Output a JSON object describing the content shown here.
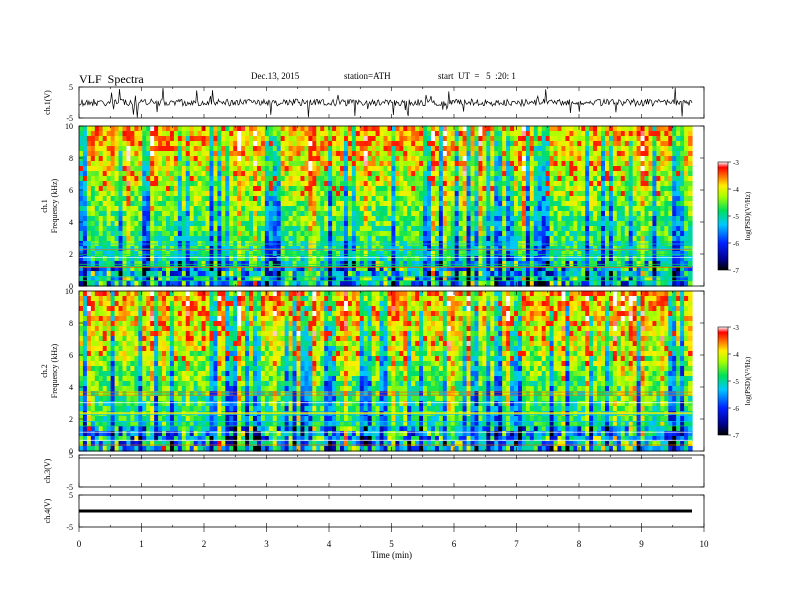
{
  "header": {
    "title": "VLF  Spectra",
    "date": "Dec.13, 2015",
    "station": "station=ATH",
    "start": "start  UT  =   5  :20: 1"
  },
  "chart_data": [
    {
      "type": "line",
      "name": "ch1-waveform",
      "ylabel": "ch.1(V)",
      "ylim": [
        -5,
        5
      ],
      "yticks": [
        "5",
        "-5"
      ],
      "xlim": [
        0,
        10
      ],
      "x_end": 9.8,
      "style": "noisy waveform around 0 V with frequent spikes"
    },
    {
      "type": "heatmap",
      "name": "ch1-spectrogram",
      "ylabel": "ch.1\nFrequency  (kHz)",
      "ylim": [
        0,
        10
      ],
      "yticks": [
        "0",
        "2",
        "4",
        "6",
        "8",
        "10"
      ],
      "xlim": [
        0,
        10
      ],
      "x_end": 9.8,
      "colorbar": {
        "label": "log(PSD)(V²/Hz)",
        "range": [
          -7,
          -3
        ],
        "ticks": [
          "-3",
          "-4",
          "-5",
          "-6",
          "-7"
        ]
      }
    },
    {
      "type": "heatmap",
      "name": "ch2-spectrogram",
      "ylabel": "ch.2\nFrequency  (kHz)",
      "ylim": [
        0,
        10
      ],
      "yticks": [
        "0",
        "2",
        "4",
        "6",
        "8",
        "10"
      ],
      "xlim": [
        0,
        10
      ],
      "x_end": 9.8,
      "colorbar": {
        "label": "log(PSD)(V²/Hz)",
        "range": [
          -7,
          -3
        ],
        "ticks": [
          "-3",
          "-4",
          "-5",
          "-6",
          "-7"
        ]
      }
    },
    {
      "type": "line",
      "name": "ch3-waveform",
      "ylabel": "ch.3(V)",
      "ylim": [
        -5,
        5
      ],
      "yticks": [
        "5",
        "-5"
      ],
      "xlim": [
        0,
        10
      ],
      "x_end": 9.8,
      "style": "flat trace near upper limit"
    },
    {
      "type": "line",
      "name": "ch4-waveform",
      "ylabel": "ch.4(V)",
      "ylim": [
        -5,
        5
      ],
      "yticks": [
        "5",
        "-5"
      ],
      "xlim": [
        0,
        10
      ],
      "x_end": 9.8,
      "style": "thick flat trace near 0 V"
    }
  ],
  "xaxis": {
    "label": "Time  (min)",
    "ticks": [
      "0",
      "1",
      "2",
      "3",
      "4",
      "5",
      "6",
      "7",
      "8",
      "9",
      "10"
    ]
  }
}
